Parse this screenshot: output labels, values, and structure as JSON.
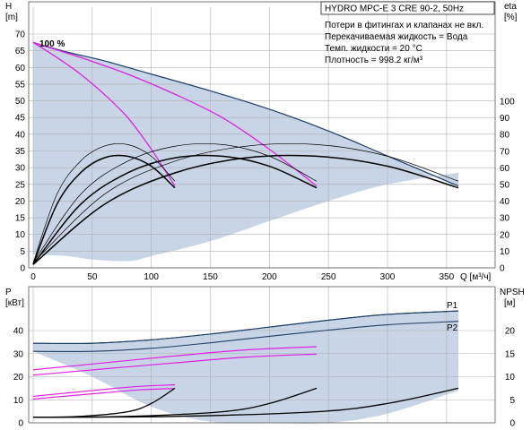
{
  "chart_data": [
    {
      "panel": "top",
      "type": "line",
      "title": "HYDRO MPC-E 3 CRE 90-2, 50Hz",
      "notes": [
        "Потери в фитингах и клапанах не вкл.",
        "Перекачиваемая жидкость = Вода",
        "Темп. жидкости = 20 °C",
        "Плотность = 998.2 кг/м³"
      ],
      "speed_label": "100 %",
      "xlabel": "Q [м³/ч]",
      "ylabel": [
        "H",
        "[m]"
      ],
      "y2label": [
        "eta",
        "[%]"
      ],
      "xlim": [
        0,
        395
      ],
      "ylim": [
        0,
        75
      ],
      "y2lim": [
        0,
        150
      ],
      "xticks": [
        0,
        50,
        100,
        150,
        200,
        250,
        300,
        350
      ],
      "yticks": [
        0,
        5,
        10,
        15,
        20,
        25,
        30,
        35,
        40,
        45,
        50,
        55,
        60,
        65,
        70
      ],
      "y2ticks": [
        0,
        10,
        20,
        30,
        40,
        50,
        60,
        70,
        80,
        90,
        100
      ],
      "grid": true,
      "colors": {
        "envelope": "#1e3f66",
        "pink": "#e020e0",
        "eta": "#000000",
        "fill": "#c7d5e6",
        "grid": "#b0b0b0"
      },
      "series": [
        {
          "role": "envelope_top",
          "x": [
            0,
            30,
            60,
            100,
            150,
            200,
            250,
            300,
            360
          ],
          "y": [
            67.5,
            64.5,
            62,
            58,
            53,
            47.5,
            41,
            33.5,
            24.5
          ]
        },
        {
          "role": "envelope_bottom",
          "x": [
            0,
            30,
            50,
            80,
            100,
            150,
            200,
            250,
            300,
            360
          ],
          "y": [
            4,
            3.5,
            2.5,
            2,
            3.5,
            8,
            14,
            20,
            25,
            28.5
          ]
        },
        {
          "role": "pink_1pump",
          "x": [
            0,
            20,
            40,
            60,
            80,
            100,
            120
          ],
          "y": [
            67.5,
            63,
            58,
            52,
            45,
            35.5,
            24.5
          ]
        },
        {
          "role": "pink_2pump",
          "x": [
            0,
            40,
            80,
            120,
            160,
            200,
            240
          ],
          "y": [
            67.5,
            63,
            58,
            52,
            45,
            35.5,
            24.5
          ]
        },
        {
          "role": "eta_1pump_thin",
          "x": [
            0,
            20,
            40,
            60,
            80,
            100,
            120
          ],
          "y": [
            3,
            44,
            64,
            73,
            74,
            67,
            52
          ]
        },
        {
          "role": "eta_1pump_bold",
          "x": [
            0,
            20,
            40,
            60,
            80,
            100,
            120
          ],
          "y": [
            2,
            38,
            57,
            66,
            67,
            61,
            48
          ]
        },
        {
          "role": "eta_2pump_thin",
          "x": [
            0,
            40,
            80,
            120,
            160,
            200,
            240
          ],
          "y": [
            3,
            44,
            64,
            73,
            74,
            67,
            52
          ]
        },
        {
          "role": "eta_2pump_bold",
          "x": [
            0,
            40,
            80,
            120,
            160,
            200,
            240
          ],
          "y": [
            2,
            38,
            57,
            66,
            67,
            61,
            48
          ]
        },
        {
          "role": "eta_3pump_thin",
          "x": [
            0,
            60,
            120,
            180,
            240,
            300,
            360
          ],
          "y": [
            3,
            44,
            64,
            73,
            74,
            67,
            52
          ]
        },
        {
          "role": "eta_3pump_bold",
          "x": [
            0,
            60,
            120,
            180,
            240,
            300,
            360
          ],
          "y": [
            2,
            38,
            57,
            66,
            67,
            61,
            48
          ]
        }
      ]
    },
    {
      "panel": "bottom",
      "type": "line",
      "ylabel": [
        "P",
        "[кВт]"
      ],
      "y2label": [
        "NPSH",
        "[м]"
      ],
      "series_labels": [
        "P1",
        "P2"
      ],
      "xlim": [
        0,
        395
      ],
      "ylim": [
        0,
        50
      ],
      "y2lim": [
        0,
        25
      ],
      "yticks": [
        0,
        10,
        20,
        30,
        40
      ],
      "y2ticks": [
        0,
        5,
        10,
        15,
        20
      ],
      "grid": true,
      "series": [
        {
          "role": "envelope_top",
          "x": [
            0,
            50,
            100,
            150,
            200,
            250,
            300,
            360
          ],
          "y": [
            34.5,
            34.5,
            36,
            38.5,
            41.5,
            44.5,
            47,
            48.5
          ]
        },
        {
          "role": "envelope_bottom",
          "x": [
            0,
            50,
            100,
            150,
            200,
            250,
            300,
            360
          ],
          "y": [
            31,
            20,
            7,
            0.5,
            0,
            0,
            4,
            14
          ]
        },
        {
          "role": "P1",
          "x": [
            0,
            50,
            100,
            150,
            200,
            250,
            300,
            360
          ],
          "y": [
            34.5,
            34.5,
            36,
            38.5,
            41.5,
            44.5,
            47,
            48.5
          ]
        },
        {
          "role": "P2",
          "x": [
            0,
            50,
            100,
            150,
            200,
            250,
            300,
            360
          ],
          "y": [
            31,
            31,
            32.3,
            34.7,
            37.5,
            40.2,
            42.5,
            44
          ]
        },
        {
          "role": "pink_P1_1pump",
          "x": [
            0,
            30,
            60,
            90,
            120
          ],
          "y": [
            11.5,
            13,
            14.5,
            15.8,
            16.5
          ]
        },
        {
          "role": "pink_P2_1pump",
          "x": [
            0,
            30,
            60,
            90,
            120
          ],
          "y": [
            10.3,
            11.7,
            13,
            14.3,
            14.9
          ]
        },
        {
          "role": "pink_P1_2pump",
          "x": [
            0,
            60,
            120,
            180,
            240
          ],
          "y": [
            23,
            26,
            29,
            31.6,
            33
          ]
        },
        {
          "role": "pink_P2_2pump",
          "x": [
            0,
            60,
            120,
            180,
            240
          ],
          "y": [
            20.7,
            23.4,
            26,
            28.5,
            29.8
          ]
        },
        {
          "role": "npsh_1pump",
          "x": [
            0,
            40,
            80,
            100,
            120
          ],
          "y": [
            1.2,
            1.4,
            2.4,
            4.2,
            7.5
          ]
        },
        {
          "role": "npsh_2pump",
          "x": [
            0,
            80,
            160,
            200,
            240
          ],
          "y": [
            1.2,
            1.4,
            2.4,
            4.2,
            7.5
          ]
        },
        {
          "role": "npsh_3pump",
          "x": [
            0,
            120,
            240,
            300,
            360
          ],
          "y": [
            1.2,
            1.4,
            2.4,
            4.2,
            7.5
          ]
        }
      ]
    }
  ]
}
